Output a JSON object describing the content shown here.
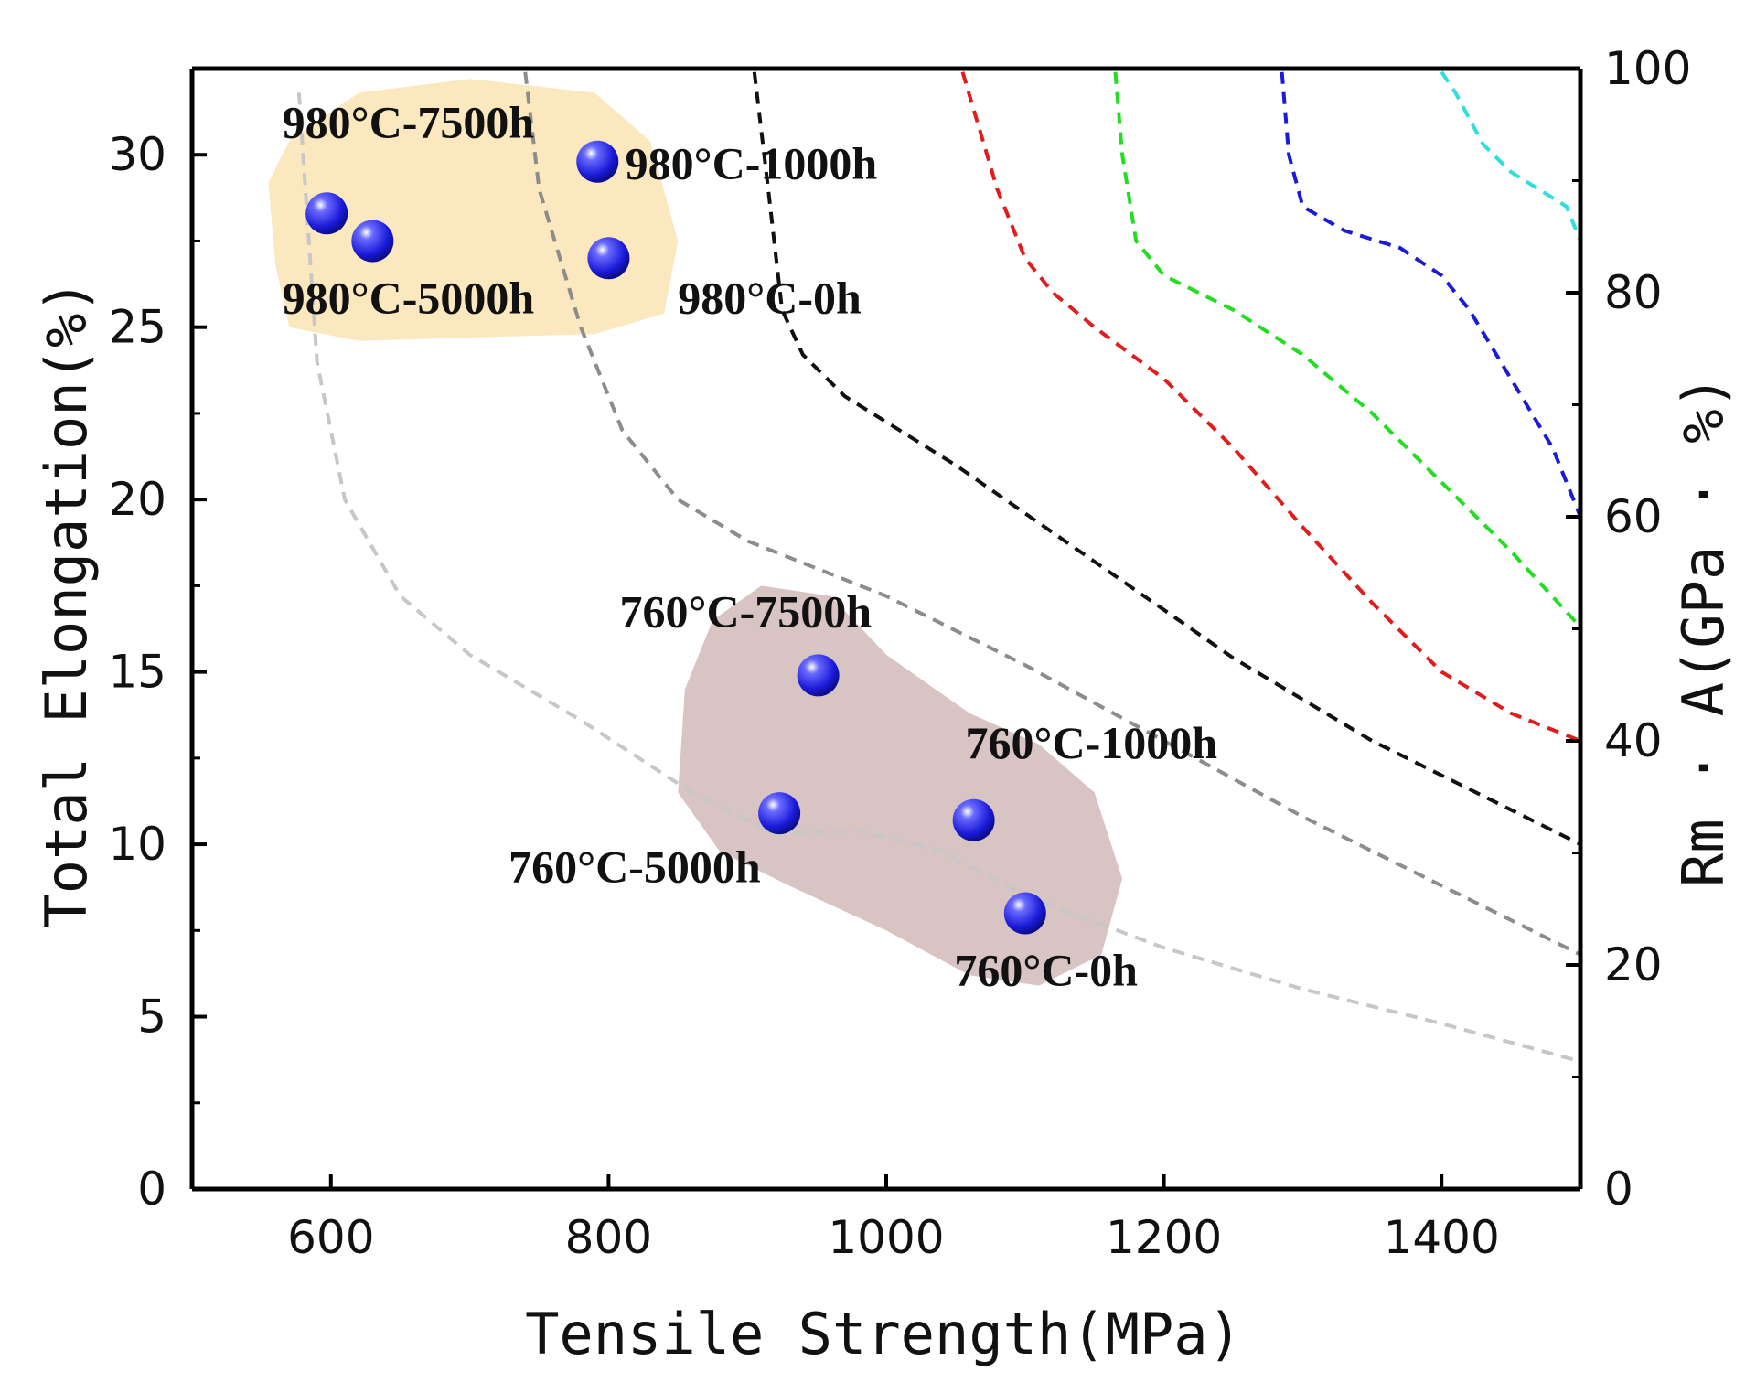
{
  "chart_data": {
    "type": "scatter",
    "title": "",
    "xlabel": "Tensile Strength(MPa)",
    "ylabel": "Total Elongation(%)",
    "y2label": "Rm · A(GPa · %)",
    "xlim": [
      500,
      1500
    ],
    "ylim": [
      0,
      32.5
    ],
    "y2lim": [
      0,
      100
    ],
    "x_ticks": [
      600,
      800,
      1000,
      1200,
      1400
    ],
    "y_ticks": [
      0,
      5,
      10,
      15,
      20,
      25,
      30
    ],
    "y2_ticks": [
      0,
      20,
      40,
      60,
      80,
      100
    ],
    "x_tick_labels": [
      "600",
      "800",
      "1000",
      "1200",
      "1400"
    ],
    "y_tick_labels": [
      "0",
      "5",
      "10",
      "15",
      "20",
      "25",
      "30"
    ],
    "y2_tick_labels": [
      "0",
      "20",
      "40",
      "60",
      "80",
      "100"
    ],
    "grid": false,
    "point_color": "#1a1ad8",
    "points": [
      {
        "name": "980°C-7500h",
        "x": 597,
        "y": 28.3
      },
      {
        "name": "980°C-5000h",
        "x": 630,
        "y": 27.5
      },
      {
        "name": "980°C-1000h",
        "x": 792,
        "y": 29.8
      },
      {
        "name": "980°C-0h",
        "x": 800,
        "y": 27.0
      },
      {
        "name": "760°C-7500h",
        "x": 951,
        "y": 14.9
      },
      {
        "name": "760°C-5000h",
        "x": 923,
        "y": 10.9
      },
      {
        "name": "760°C-1000h",
        "x": 1063,
        "y": 10.7
      },
      {
        "name": "760°C-0h",
        "x": 1100,
        "y": 8.0
      }
    ],
    "labels": [
      {
        "text": "980°C-7500h",
        "x": 565,
        "y": 30.5
      },
      {
        "text": "980°C-5000h",
        "x": 565,
        "y": 25.4
      },
      {
        "text": "980°C-1000h",
        "x": 812,
        "y": 29.3
      },
      {
        "text": "980°C-0h",
        "x": 850,
        "y": 25.4
      },
      {
        "text": "760°C-7500h",
        "x": 808,
        "y": 16.3
      },
      {
        "text": "760°C-5000h",
        "x": 728,
        "y": 8.9
      },
      {
        "text": "760°C-1000h",
        "x": 1057,
        "y": 12.5
      },
      {
        "text": "760°C-0h",
        "x": 1049,
        "y": 5.9
      }
    ],
    "regions": [
      {
        "name": "980C-group",
        "color": "#fbe8bf",
        "polygon": [
          [
            570,
            30.4
          ],
          [
            620,
            31.8
          ],
          [
            700,
            32.2
          ],
          [
            790,
            31.8
          ],
          [
            830,
            30.4
          ],
          [
            850,
            27.5
          ],
          [
            840,
            25.4
          ],
          [
            790,
            24.8
          ],
          [
            700,
            24.7
          ],
          [
            620,
            24.6
          ],
          [
            570,
            25.0
          ],
          [
            560,
            26.8
          ],
          [
            555,
            29.2
          ]
        ]
      },
      {
        "name": "760C-group",
        "color": "#d9c4c4",
        "polygon": [
          [
            910,
            17.5
          ],
          [
            960,
            17.2
          ],
          [
            1000,
            15.5
          ],
          [
            1060,
            13.8
          ],
          [
            1110,
            12.9
          ],
          [
            1150,
            11.5
          ],
          [
            1170,
            9.0
          ],
          [
            1155,
            6.8
          ],
          [
            1110,
            5.9
          ],
          [
            1060,
            6.2
          ],
          [
            1000,
            7.5
          ],
          [
            930,
            8.8
          ],
          [
            880,
            9.8
          ],
          [
            850,
            11.5
          ],
          [
            855,
            14.5
          ],
          [
            875,
            16.5
          ]
        ]
      }
    ],
    "curves": [
      {
        "name": "iso-light-gray",
        "color": "#c7c7c7",
        "points": [
          [
            577,
            31.8
          ],
          [
            580,
            30
          ],
          [
            590,
            24
          ],
          [
            610,
            20
          ],
          [
            650,
            17.2
          ],
          [
            700,
            15.5
          ],
          [
            780,
            13.6
          ],
          [
            860,
            11.5
          ],
          [
            920,
            10.3
          ],
          [
            980,
            10.4
          ],
          [
            1040,
            9.8
          ],
          [
            1100,
            8.5
          ],
          [
            1200,
            7.0
          ],
          [
            1300,
            5.8
          ],
          [
            1400,
            4.8
          ],
          [
            1500,
            3.7
          ]
        ]
      },
      {
        "name": "iso-gray",
        "color": "#8c8c8c",
        "points": [
          [
            740,
            32.4
          ],
          [
            750,
            29
          ],
          [
            780,
            25
          ],
          [
            810,
            22
          ],
          [
            850,
            20
          ],
          [
            900,
            18.8
          ],
          [
            950,
            18.0
          ],
          [
            1000,
            17.2
          ],
          [
            1100,
            15.2
          ],
          [
            1200,
            13.0
          ],
          [
            1300,
            10.8
          ],
          [
            1400,
            8.8
          ],
          [
            1500,
            6.8
          ]
        ]
      },
      {
        "name": "iso-black",
        "color": "#111111",
        "points": [
          [
            905,
            32.4
          ],
          [
            915,
            29
          ],
          [
            925,
            25.5
          ],
          [
            940,
            24.2
          ],
          [
            970,
            23.0
          ],
          [
            1050,
            21.0
          ],
          [
            1150,
            18.2
          ],
          [
            1250,
            15.4
          ],
          [
            1350,
            13.0
          ],
          [
            1450,
            11.0
          ],
          [
            1500,
            10.0
          ]
        ]
      },
      {
        "name": "iso-red",
        "color": "#e11c1c",
        "points": [
          [
            1055,
            32.4
          ],
          [
            1080,
            29
          ],
          [
            1100,
            27
          ],
          [
            1120,
            26.0
          ],
          [
            1150,
            25.0
          ],
          [
            1200,
            23.5
          ],
          [
            1250,
            21.5
          ],
          [
            1300,
            19.2
          ],
          [
            1350,
            17.0
          ],
          [
            1400,
            15.0
          ],
          [
            1450,
            13.8
          ],
          [
            1500,
            13.0
          ]
        ]
      },
      {
        "name": "iso-green",
        "color": "#22dd22",
        "points": [
          [
            1165,
            32.4
          ],
          [
            1170,
            30
          ],
          [
            1180,
            27.5
          ],
          [
            1200,
            26.5
          ],
          [
            1250,
            25.5
          ],
          [
            1300,
            24.2
          ],
          [
            1350,
            22.5
          ],
          [
            1400,
            20.5
          ],
          [
            1450,
            18.5
          ],
          [
            1500,
            16.3
          ]
        ]
      },
      {
        "name": "iso-blue",
        "color": "#1a1ad8",
        "points": [
          [
            1285,
            32.4
          ],
          [
            1290,
            30
          ],
          [
            1300,
            28.5
          ],
          [
            1330,
            27.8
          ],
          [
            1370,
            27.3
          ],
          [
            1400,
            26.5
          ],
          [
            1420,
            25.5
          ],
          [
            1450,
            23.5
          ],
          [
            1480,
            21.5
          ],
          [
            1500,
            19.5
          ]
        ]
      },
      {
        "name": "iso-cyan",
        "color": "#33dddd",
        "points": [
          [
            1400,
            32.4
          ],
          [
            1410,
            31.8
          ],
          [
            1430,
            30.3
          ],
          [
            1450,
            29.5
          ],
          [
            1470,
            29.0
          ],
          [
            1490,
            28.5
          ],
          [
            1500,
            27.5
          ],
          [
            1500,
            24.0
          ]
        ]
      }
    ]
  }
}
